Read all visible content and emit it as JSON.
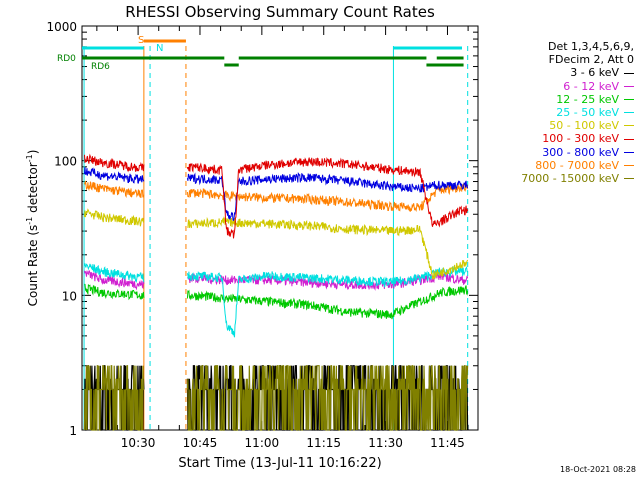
{
  "chart_data": {
    "type": "line",
    "title": "RHESSI Observing Summary Count Rates",
    "xlabel": "Start Time (13-Jul-11 10:16:22)",
    "ylabel_prefix": "Count Rate (s",
    "ylabel_sup1": "-1",
    "ylabel_mid": " detector",
    "ylabel_sup2": "-1",
    "ylabel_suffix": ")",
    "yscale": "log",
    "ylim": [
      1,
      1000
    ],
    "xlim_minutes": [
      0,
      96
    ],
    "x_ticks": [
      {
        "label": "10:30",
        "minutes": 13.6
      },
      {
        "label": "10:45",
        "minutes": 28.6
      },
      {
        "label": "11:00",
        "minutes": 43.6
      },
      {
        "label": "11:15",
        "minutes": 58.6
      },
      {
        "label": "11:30",
        "minutes": 73.6
      },
      {
        "label": "11:45",
        "minutes": 88.6
      }
    ],
    "y_tick_labels": [
      {
        "label": "1",
        "value": 1
      },
      {
        "label": "10",
        "value": 10
      },
      {
        "label": "100",
        "value": 100
      },
      {
        "label": "1000",
        "value": 1000
      }
    ],
    "legend_header": [
      "Det 1,3,4,5,6,9,",
      "FDecim 2, Att 0"
    ],
    "legend_position": "right",
    "series": [
      {
        "name": "3 - 6 keV",
        "color": "#000000",
        "x": [
          0,
          15,
          27,
          35,
          40,
          55,
          70,
          85,
          92
        ],
        "y": [
          2.2,
          1.8,
          2.4,
          2.2,
          1.9,
          2.1,
          1.9,
          2.0,
          2.6
        ]
      },
      {
        "name": "6 - 12 keV",
        "color": "#d020d0",
        "x": [
          0,
          5,
          15,
          27,
          35,
          45,
          55,
          65,
          75,
          82,
          87,
          92
        ],
        "y": [
          15,
          13,
          12,
          13.5,
          13,
          13,
          12.5,
          12,
          12,
          13,
          14,
          13
        ]
      },
      {
        "name": "12 - 25 keV",
        "color": "#00c800",
        "x": [
          0,
          5,
          15,
          27,
          35,
          45,
          55,
          65,
          75,
          82,
          87,
          92
        ],
        "y": [
          11.5,
          10.5,
          10,
          10,
          9.5,
          9,
          8.5,
          7.5,
          7.2,
          9,
          10.5,
          11
        ]
      },
      {
        "name": "25 - 50 keV",
        "color": "#00e0e0",
        "x": [
          0,
          5,
          15,
          27,
          34,
          35,
          37,
          38,
          45,
          55,
          65,
          75,
          82,
          87,
          92
        ],
        "y": [
          17,
          15,
          13.5,
          14,
          13.5,
          6,
          5.3,
          13,
          14,
          13.5,
          13,
          12.5,
          13.5,
          15,
          15
        ]
      },
      {
        "name": "50 - 100 keV",
        "color": "#d0c800",
        "x": [
          0,
          5,
          15,
          27,
          35,
          45,
          55,
          65,
          75,
          82,
          85,
          92
        ],
        "y": [
          42,
          38,
          35,
          34,
          35,
          34,
          33,
          31,
          30,
          31,
          14,
          17
        ]
      },
      {
        "name": "100 - 300 keV",
        "color": "#e00000",
        "x": [
          0,
          5,
          15,
          27,
          34,
          35,
          37,
          38,
          45,
          55,
          65,
          75,
          82,
          85,
          92
        ],
        "y": [
          105,
          97,
          88,
          90,
          85,
          30,
          28,
          86,
          93,
          99,
          94,
          86,
          82,
          33,
          43
        ]
      },
      {
        "name": "300 - 800 keV",
        "color": "#0000e0",
        "x": [
          0,
          5,
          15,
          27,
          34,
          35,
          37,
          38,
          45,
          55,
          65,
          75,
          82,
          86,
          92
        ],
        "y": [
          85,
          78,
          72,
          74,
          72,
          40,
          38,
          70,
          73,
          75,
          70,
          64,
          62,
          66,
          66
        ]
      },
      {
        "name": "800 - 7000 keV",
        "color": "#ff8000",
        "x": [
          0,
          5,
          15,
          27,
          35,
          45,
          55,
          65,
          75,
          82,
          86,
          92
        ],
        "y": [
          68,
          62,
          56,
          58,
          55,
          53,
          52,
          49,
          46,
          45,
          60,
          64
        ]
      },
      {
        "name": "7000 - 15000 keV",
        "color": "#808000",
        "x": [
          0,
          15,
          27,
          35,
          45,
          55,
          65,
          75,
          85,
          92
        ],
        "y": [
          2.3,
          2.0,
          2.4,
          2.1,
          2.0,
          2.1,
          1.9,
          2.2,
          2.1,
          2.8
        ]
      }
    ],
    "data_gaps_minutes": [
      [
        15,
        25.5
      ]
    ],
    "flag_labels": {
      "s": "S",
      "n": "N",
      "rd0": "RD0",
      "rd6": "RD6"
    },
    "flag_colors": {
      "saa": "#ff8000",
      "night": "#00e0e0",
      "decimation": "#008000"
    },
    "grid": false
  },
  "timestamp": "18-Oct-2021 08:28"
}
